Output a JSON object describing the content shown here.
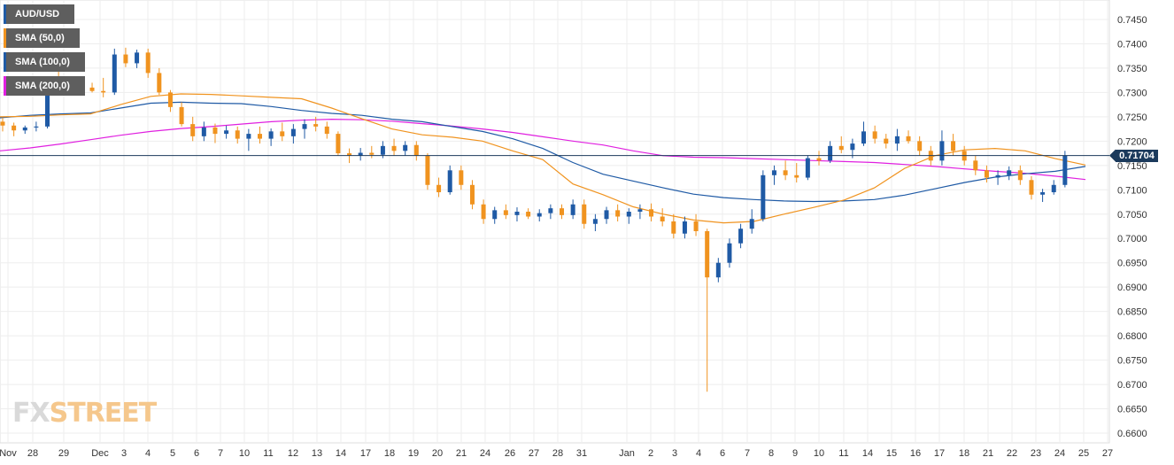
{
  "chart_data": {
    "type": "candlestick",
    "symbol": "AUD/USD",
    "legend": [
      {
        "label": "AUD/USD",
        "color": "#1f5aa5"
      },
      {
        "label": "SMA (50,0)",
        "color": "#f0931f"
      },
      {
        "label": "SMA (100,0)",
        "color": "#1f5aa5"
      },
      {
        "label": "SMA (200,0)",
        "color": "#e020e0"
      }
    ],
    "y_ticks": [
      "0.7450",
      "0.7400",
      "0.7350",
      "0.7300",
      "0.7250",
      "0.7200",
      "0.7150",
      "0.7100",
      "0.7050",
      "0.7000",
      "0.6950",
      "0.6900",
      "0.6850",
      "0.6800",
      "0.6750",
      "0.6700",
      "0.6650",
      "0.6600"
    ],
    "ylim": [
      0.658,
      0.749
    ],
    "x_ticks": [
      "Nov",
      "28",
      "29",
      "Dec",
      "3",
      "4",
      "5",
      "6",
      "7",
      "10",
      "11",
      "12",
      "13",
      "14",
      "17",
      "18",
      "19",
      "20",
      "21",
      "24",
      "26",
      "27",
      "28",
      "31",
      "Jan",
      "2",
      "3",
      "4",
      "6",
      "7",
      "8",
      "9",
      "10",
      "11",
      "14",
      "15",
      "16",
      "17",
      "18",
      "21",
      "22",
      "23",
      "24",
      "25",
      "27"
    ],
    "last_price": "0.71704",
    "watermark": {
      "part1": "FX",
      "part2": "STREET"
    },
    "colors": {
      "up": "#1f5aa5",
      "down": "#f0931f",
      "sma50": "#f0931f",
      "sma100": "#1f5aa5",
      "sma200": "#e020e0",
      "grid": "#eeeeee",
      "price_line": "#1b3a5c"
    },
    "sma50": [
      [
        0,
        0.725
      ],
      [
        1,
        0.7251
      ],
      [
        2,
        0.7254
      ],
      [
        3,
        0.7256
      ],
      [
        4,
        0.7275
      ],
      [
        5,
        0.7292
      ],
      [
        6,
        0.7297
      ],
      [
        7,
        0.7296
      ],
      [
        8,
        0.7293
      ],
      [
        9,
        0.729
      ],
      [
        10,
        0.7287
      ],
      [
        11,
        0.7268
      ],
      [
        12,
        0.7246
      ],
      [
        13,
        0.7225
      ],
      [
        14,
        0.7213
      ],
      [
        15,
        0.7208
      ],
      [
        16,
        0.72
      ],
      [
        17,
        0.718
      ],
      [
        18,
        0.7162
      ],
      [
        19,
        0.7112
      ],
      [
        20,
        0.709
      ],
      [
        21,
        0.7065
      ],
      [
        22,
        0.705
      ],
      [
        23,
        0.7038
      ],
      [
        24,
        0.7032
      ],
      [
        25,
        0.7035
      ],
      [
        26,
        0.705
      ],
      [
        27,
        0.7064
      ],
      [
        28,
        0.7079
      ],
      [
        29,
        0.7104
      ],
      [
        30,
        0.7144
      ],
      [
        31,
        0.717
      ],
      [
        32,
        0.7182
      ],
      [
        33,
        0.7185
      ],
      [
        34,
        0.718
      ],
      [
        35,
        0.7164
      ],
      [
        36,
        0.7151
      ]
    ],
    "sma100": [
      [
        0,
        0.7248
      ],
      [
        1,
        0.7253
      ],
      [
        2,
        0.7256
      ],
      [
        3,
        0.7258
      ],
      [
        4,
        0.7268
      ],
      [
        5,
        0.7278
      ],
      [
        6,
        0.728
      ],
      [
        7,
        0.7278
      ],
      [
        8,
        0.7277
      ],
      [
        9,
        0.7271
      ],
      [
        10,
        0.7263
      ],
      [
        11,
        0.7257
      ],
      [
        12,
        0.7253
      ],
      [
        13,
        0.7245
      ],
      [
        14,
        0.724
      ],
      [
        15,
        0.723
      ],
      [
        16,
        0.722
      ],
      [
        17,
        0.7205
      ],
      [
        18,
        0.7185
      ],
      [
        19,
        0.7156
      ],
      [
        20,
        0.7132
      ],
      [
        21,
        0.7118
      ],
      [
        22,
        0.7104
      ],
      [
        23,
        0.7091
      ],
      [
        24,
        0.7084
      ],
      [
        25,
        0.708
      ],
      [
        26,
        0.7077
      ],
      [
        27,
        0.7076
      ],
      [
        28,
        0.7077
      ],
      [
        29,
        0.708
      ],
      [
        30,
        0.7089
      ],
      [
        31,
        0.7102
      ],
      [
        32,
        0.7115
      ],
      [
        33,
        0.7126
      ],
      [
        34,
        0.7133
      ],
      [
        35,
        0.7138
      ],
      [
        36,
        0.7148
      ]
    ],
    "sma200": [
      [
        0,
        0.718
      ],
      [
        1,
        0.7186
      ],
      [
        2,
        0.7194
      ],
      [
        3,
        0.7203
      ],
      [
        4,
        0.7212
      ],
      [
        5,
        0.722
      ],
      [
        6,
        0.7226
      ],
      [
        7,
        0.723
      ],
      [
        8,
        0.7235
      ],
      [
        9,
        0.724
      ],
      [
        10,
        0.7243
      ],
      [
        11,
        0.7245
      ],
      [
        12,
        0.7244
      ],
      [
        13,
        0.7241
      ],
      [
        14,
        0.7236
      ],
      [
        15,
        0.7231
      ],
      [
        16,
        0.7225
      ],
      [
        17,
        0.7218
      ],
      [
        18,
        0.7209
      ],
      [
        19,
        0.72
      ],
      [
        20,
        0.7192
      ],
      [
        21,
        0.718
      ],
      [
        22,
        0.717
      ],
      [
        23,
        0.7167
      ],
      [
        24,
        0.7166
      ],
      [
        25,
        0.7164
      ],
      [
        26,
        0.7162
      ],
      [
        27,
        0.716
      ],
      [
        28,
        0.7158
      ],
      [
        29,
        0.7156
      ],
      [
        30,
        0.7152
      ],
      [
        31,
        0.7148
      ],
      [
        32,
        0.7143
      ],
      [
        33,
        0.7138
      ],
      [
        34,
        0.7134
      ],
      [
        35,
        0.7128
      ],
      [
        36,
        0.7121
      ]
    ],
    "candles": [
      [
        0.724,
        0.7248,
        0.722,
        0.7232
      ],
      [
        0.7232,
        0.7238,
        0.721,
        0.7222
      ],
      [
        0.7222,
        0.7232,
        0.7215,
        0.7228
      ],
      [
        0.7228,
        0.724,
        0.722,
        0.723
      ],
      [
        0.723,
        0.733,
        0.7226,
        0.732
      ],
      [
        0.732,
        0.7345,
        0.73,
        0.731
      ],
      [
        0.731,
        0.733,
        0.7296,
        0.7325
      ],
      [
        0.7325,
        0.733,
        0.73,
        0.731
      ],
      [
        0.731,
        0.732,
        0.73,
        0.7303
      ],
      [
        0.7303,
        0.733,
        0.729,
        0.73
      ],
      [
        0.73,
        0.739,
        0.7295,
        0.7378
      ],
      [
        0.7378,
        0.7392,
        0.7352,
        0.736
      ],
      [
        0.736,
        0.7388,
        0.735,
        0.7382
      ],
      [
        0.7382,
        0.739,
        0.733,
        0.734
      ],
      [
        0.734,
        0.735,
        0.7295,
        0.73
      ],
      [
        0.73,
        0.7305,
        0.726,
        0.727
      ],
      [
        0.727,
        0.728,
        0.723,
        0.7235
      ],
      [
        0.7235,
        0.725,
        0.72,
        0.721
      ],
      [
        0.721,
        0.724,
        0.72,
        0.7228
      ],
      [
        0.7228,
        0.7236,
        0.7196,
        0.7215
      ],
      [
        0.7215,
        0.7232,
        0.7205,
        0.7222
      ],
      [
        0.7222,
        0.723,
        0.7195,
        0.7205
      ],
      [
        0.7205,
        0.7225,
        0.718,
        0.7215
      ],
      [
        0.7215,
        0.723,
        0.7195,
        0.7205
      ],
      [
        0.7205,
        0.7226,
        0.719,
        0.722
      ],
      [
        0.722,
        0.7238,
        0.72,
        0.721
      ],
      [
        0.721,
        0.7235,
        0.7195,
        0.7225
      ],
      [
        0.7225,
        0.7245,
        0.7205,
        0.7235
      ],
      [
        0.7235,
        0.725,
        0.722,
        0.723
      ],
      [
        0.723,
        0.724,
        0.7205,
        0.7215
      ],
      [
        0.7215,
        0.722,
        0.717,
        0.7175
      ],
      [
        0.7175,
        0.7185,
        0.7155,
        0.717
      ],
      [
        0.717,
        0.7186,
        0.716,
        0.7176
      ],
      [
        0.7176,
        0.719,
        0.7165,
        0.7172
      ],
      [
        0.7172,
        0.72,
        0.7165,
        0.719
      ],
      [
        0.719,
        0.7205,
        0.717,
        0.718
      ],
      [
        0.718,
        0.72,
        0.717,
        0.7192
      ],
      [
        0.7192,
        0.72,
        0.716,
        0.717
      ],
      [
        0.717,
        0.7175,
        0.71,
        0.711
      ],
      [
        0.711,
        0.7125,
        0.7085,
        0.7095
      ],
      [
        0.7095,
        0.715,
        0.709,
        0.714
      ],
      [
        0.714,
        0.715,
        0.71,
        0.711
      ],
      [
        0.711,
        0.712,
        0.706,
        0.707
      ],
      [
        0.707,
        0.708,
        0.703,
        0.704
      ],
      [
        0.704,
        0.7065,
        0.703,
        0.7058
      ],
      [
        0.7058,
        0.707,
        0.704,
        0.7048
      ],
      [
        0.7048,
        0.7064,
        0.7035,
        0.7055
      ],
      [
        0.7055,
        0.7062,
        0.704,
        0.7045
      ],
      [
        0.7045,
        0.706,
        0.7035,
        0.7052
      ],
      [
        0.7052,
        0.707,
        0.704,
        0.7062
      ],
      [
        0.7062,
        0.707,
        0.704,
        0.7048
      ],
      [
        0.7048,
        0.708,
        0.704,
        0.707
      ],
      [
        0.707,
        0.708,
        0.702,
        0.703
      ],
      [
        0.703,
        0.705,
        0.7015,
        0.704
      ],
      [
        0.704,
        0.7065,
        0.703,
        0.7058
      ],
      [
        0.7058,
        0.707,
        0.7035,
        0.7045
      ],
      [
        0.7045,
        0.7062,
        0.703,
        0.7055
      ],
      [
        0.7055,
        0.707,
        0.704,
        0.706
      ],
      [
        0.706,
        0.7072,
        0.7035,
        0.7045
      ],
      [
        0.7045,
        0.7062,
        0.7025,
        0.7035
      ],
      [
        0.7035,
        0.705,
        0.7,
        0.701
      ],
      [
        0.701,
        0.7045,
        0.7,
        0.7035
      ],
      [
        0.7035,
        0.705,
        0.7005,
        0.7015
      ],
      [
        0.7015,
        0.702,
        0.6685,
        0.692
      ],
      [
        0.692,
        0.696,
        0.691,
        0.695
      ],
      [
        0.695,
        0.7,
        0.694,
        0.699
      ],
      [
        0.699,
        0.703,
        0.698,
        0.702
      ],
      [
        0.702,
        0.706,
        0.701,
        0.704
      ],
      [
        0.704,
        0.714,
        0.7035,
        0.713
      ],
      [
        0.713,
        0.715,
        0.711,
        0.714
      ],
      [
        0.714,
        0.716,
        0.712,
        0.713
      ],
      [
        0.713,
        0.7155,
        0.7115,
        0.7125
      ],
      [
        0.7125,
        0.717,
        0.712,
        0.7165
      ],
      [
        0.7165,
        0.718,
        0.715,
        0.716
      ],
      [
        0.716,
        0.72,
        0.7155,
        0.719
      ],
      [
        0.719,
        0.721,
        0.7175,
        0.7182
      ],
      [
        0.7182,
        0.7205,
        0.7165,
        0.7195
      ],
      [
        0.7195,
        0.724,
        0.719,
        0.722
      ],
      [
        0.722,
        0.7232,
        0.7195,
        0.7205
      ],
      [
        0.7205,
        0.7215,
        0.7185,
        0.7195
      ],
      [
        0.7195,
        0.7225,
        0.718,
        0.721
      ],
      [
        0.721,
        0.7222,
        0.7195,
        0.72
      ],
      [
        0.72,
        0.721,
        0.717,
        0.718
      ],
      [
        0.718,
        0.719,
        0.715,
        0.716
      ],
      [
        0.716,
        0.7222,
        0.715,
        0.72
      ],
      [
        0.72,
        0.7215,
        0.717,
        0.718
      ],
      [
        0.718,
        0.719,
        0.715,
        0.716
      ],
      [
        0.716,
        0.717,
        0.713,
        0.714
      ],
      [
        0.714,
        0.715,
        0.7115,
        0.7125
      ],
      [
        0.7125,
        0.714,
        0.711,
        0.713
      ],
      [
        0.713,
        0.7148,
        0.712,
        0.714
      ],
      [
        0.714,
        0.715,
        0.711,
        0.712
      ],
      [
        0.712,
        0.7128,
        0.708,
        0.709
      ],
      [
        0.709,
        0.7102,
        0.7075,
        0.7095
      ],
      [
        0.7095,
        0.712,
        0.709,
        0.711
      ],
      [
        0.711,
        0.718,
        0.7105,
        0.717
      ]
    ]
  }
}
